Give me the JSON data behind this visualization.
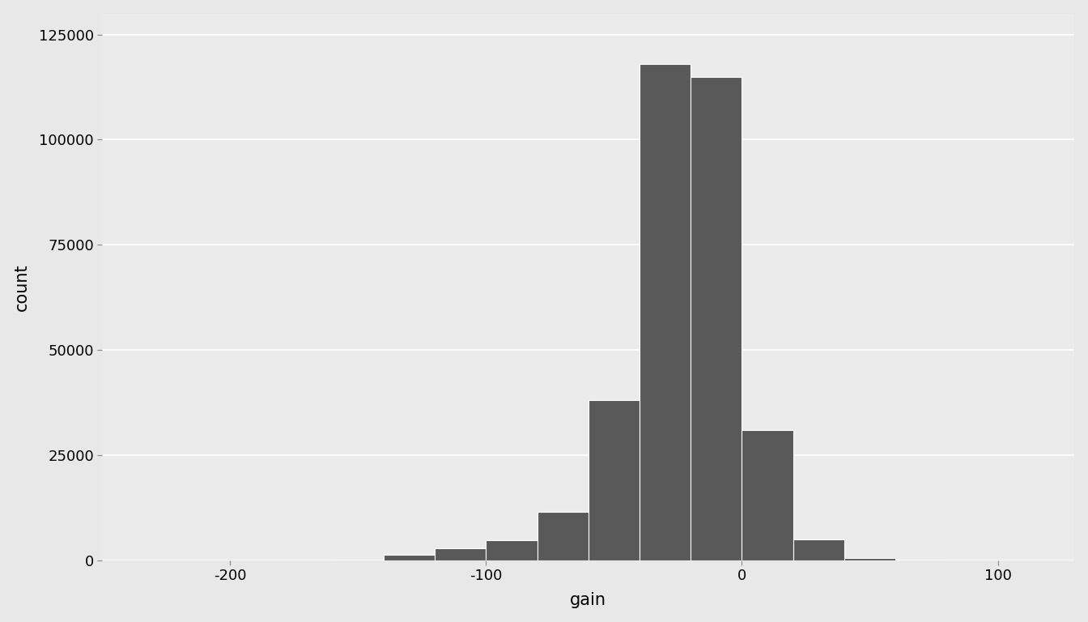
{
  "title": "",
  "xlabel": "gain",
  "ylabel": "count",
  "bar_color": "#595959",
  "bar_edgecolor": "white",
  "figure_background": "#E8E8E8",
  "panel_background": "#EBEBEB",
  "grid_color": "white",
  "xlim": [
    -250,
    130
  ],
  "ylim": [
    0,
    130000
  ],
  "xticks": [
    -200,
    -100,
    0,
    100
  ],
  "yticks": [
    0,
    25000,
    50000,
    75000,
    100000,
    125000
  ],
  "ytick_labels": [
    "0",
    "25000",
    "50000",
    "75000",
    "100000",
    "125000"
  ],
  "bin_edges": [
    -160,
    -140,
    -120,
    -100,
    -80,
    -60,
    -40,
    -20,
    0,
    20,
    40,
    60,
    80
  ],
  "bin_counts": [
    150,
    1400,
    2800,
    4800,
    11500,
    38000,
    118000,
    115000,
    31000,
    5000,
    500,
    100
  ]
}
